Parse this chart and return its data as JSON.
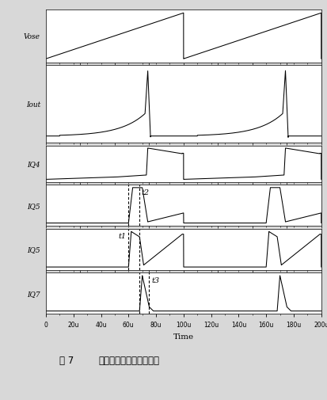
{
  "caption_num": "图 7",
  "caption_text": "斜坡补偿电路的仿真波形",
  "xlabel": "Time",
  "xmin": 0,
  "xmax": 200,
  "xticks": [
    0,
    20,
    40,
    60,
    80,
    100,
    120,
    140,
    160,
    180,
    200
  ],
  "xtick_labels": [
    "0",
    "20u",
    "40u",
    "60u",
    "80u",
    "100u",
    "120u",
    "140u",
    "160u",
    "180u",
    "200u"
  ],
  "t1": 60,
  "t2": 68,
  "t3": 75,
  "subplot_labels": [
    "Vose",
    "Iout",
    "IQ4",
    "IQ5",
    "IQ5",
    "IQ7"
  ],
  "bg_color": "#d8d8d8",
  "plot_bg": "#ffffff",
  "line_color": "#000000",
  "dashed_color": "#000000",
  "period": 100,
  "height_ratios": [
    1.1,
    1.6,
    0.75,
    0.85,
    0.85,
    0.85
  ]
}
